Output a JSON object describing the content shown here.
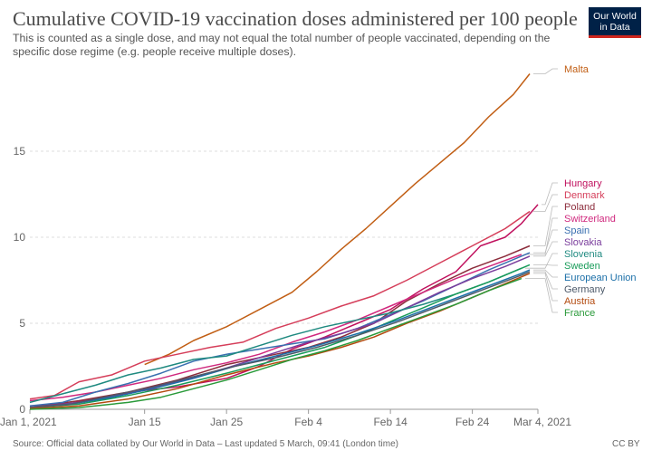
{
  "header": {
    "title": "Cumulative COVID-19 vaccination doses administered per 100 people",
    "subtitle": "This is counted as a single dose, and may not equal the total number of people vaccinated, depending on the specific dose regime (e.g. people receive multiple doses).",
    "logo_line1": "Our World",
    "logo_line2": "in Data"
  },
  "footer": {
    "source": "Source: Official data collated by Our World in Data – Last updated 5 March, 09:41 (London time)",
    "license": "CC BY"
  },
  "chart_data": {
    "type": "line",
    "title": "Cumulative COVID-19 vaccination doses administered per 100 people",
    "ylim": [
      0,
      20
    ],
    "yticks": [
      0,
      5,
      10,
      15
    ],
    "x_ticks": [
      {
        "day": 0,
        "label": "Jan 1, 2021"
      },
      {
        "day": 14,
        "label": "Jan 15"
      },
      {
        "day": 24,
        "label": "Jan 25"
      },
      {
        "day": 34,
        "label": "Feb 4"
      },
      {
        "day": 44,
        "label": "Feb 14"
      },
      {
        "day": 54,
        "label": "Feb 24"
      },
      {
        "day": 62,
        "label": "Mar 4, 2021"
      }
    ],
    "x_range_days": [
      0,
      62
    ],
    "grid": "horizontal dashed",
    "legend": "right, end-of-line labels",
    "series": [
      {
        "name": "Malta",
        "color": "#c15e14",
        "points": [
          [
            14,
            2.6
          ],
          [
            17,
            3.2
          ],
          [
            20,
            4.0
          ],
          [
            24,
            4.8
          ],
          [
            28,
            5.8
          ],
          [
            32,
            6.8
          ],
          [
            35,
            8.0
          ],
          [
            38,
            9.3
          ],
          [
            41,
            10.5
          ],
          [
            44,
            11.8
          ],
          [
            47,
            13.1
          ],
          [
            50,
            14.3
          ],
          [
            53,
            15.5
          ],
          [
            56,
            17.0
          ],
          [
            59,
            18.3
          ],
          [
            61,
            19.5
          ]
        ]
      },
      {
        "name": "Hungary",
        "color": "#c0115e",
        "points": [
          [
            0,
            0.2
          ],
          [
            5,
            0.35
          ],
          [
            10,
            0.8
          ],
          [
            14,
            1.1
          ],
          [
            18,
            1.3
          ],
          [
            24,
            1.8
          ],
          [
            28,
            2.5
          ],
          [
            32,
            3.5
          ],
          [
            36,
            4.2
          ],
          [
            40,
            5.0
          ],
          [
            44,
            5.8
          ],
          [
            48,
            7.0
          ],
          [
            52,
            8.0
          ],
          [
            55,
            9.5
          ],
          [
            58,
            10.0
          ],
          [
            60,
            10.8
          ],
          [
            62,
            11.9
          ]
        ]
      },
      {
        "name": "Denmark",
        "color": "#d53e5a",
        "points": [
          [
            0,
            0.6
          ],
          [
            3,
            0.8
          ],
          [
            6,
            1.6
          ],
          [
            10,
            2.0
          ],
          [
            14,
            2.8
          ],
          [
            18,
            3.2
          ],
          [
            22,
            3.6
          ],
          [
            26,
            3.9
          ],
          [
            30,
            4.7
          ],
          [
            34,
            5.3
          ],
          [
            38,
            6.0
          ],
          [
            42,
            6.6
          ],
          [
            46,
            7.5
          ],
          [
            50,
            8.5
          ],
          [
            54,
            9.5
          ],
          [
            58,
            10.5
          ],
          [
            61,
            11.5
          ]
        ]
      },
      {
        "name": "Poland",
        "color": "#8c2d3c",
        "points": [
          [
            0,
            0.1
          ],
          [
            6,
            0.5
          ],
          [
            12,
            1.0
          ],
          [
            18,
            1.7
          ],
          [
            24,
            2.6
          ],
          [
            30,
            3.2
          ],
          [
            34,
            3.6
          ],
          [
            38,
            4.2
          ],
          [
            42,
            5.0
          ],
          [
            46,
            6.3
          ],
          [
            50,
            7.3
          ],
          [
            54,
            8.2
          ],
          [
            58,
            8.9
          ],
          [
            61,
            9.5
          ]
        ]
      },
      {
        "name": "Switzerland",
        "color": "#d0297e",
        "points": [
          [
            0,
            0.5
          ],
          [
            4,
            0.7
          ],
          [
            8,
            1.0
          ],
          [
            12,
            1.4
          ],
          [
            16,
            1.8
          ],
          [
            20,
            2.3
          ],
          [
            24,
            2.7
          ],
          [
            28,
            3.2
          ],
          [
            32,
            3.9
          ],
          [
            36,
            4.5
          ],
          [
            40,
            5.2
          ],
          [
            44,
            6.0
          ],
          [
            48,
            6.8
          ],
          [
            52,
            7.6
          ],
          [
            56,
            8.3
          ],
          [
            60,
            9.0
          ]
        ]
      },
      {
        "name": "Spain",
        "color": "#3a70b0",
        "points": [
          [
            0,
            0.2
          ],
          [
            4,
            0.4
          ],
          [
            8,
            1.0
          ],
          [
            12,
            1.5
          ],
          [
            16,
            2.1
          ],
          [
            20,
            2.8
          ],
          [
            24,
            3.2
          ],
          [
            28,
            3.5
          ],
          [
            32,
            3.8
          ],
          [
            36,
            4.1
          ],
          [
            40,
            4.7
          ],
          [
            44,
            5.5
          ],
          [
            48,
            6.3
          ],
          [
            52,
            7.2
          ],
          [
            56,
            8.1
          ],
          [
            61,
            9.1
          ]
        ]
      },
      {
        "name": "Slovakia",
        "color": "#7a3d9c",
        "points": [
          [
            0,
            0.1
          ],
          [
            6,
            0.4
          ],
          [
            12,
            0.9
          ],
          [
            18,
            1.6
          ],
          [
            24,
            2.4
          ],
          [
            30,
            3.3
          ],
          [
            34,
            3.9
          ],
          [
            38,
            4.4
          ],
          [
            42,
            5.0
          ],
          [
            46,
            5.9
          ],
          [
            50,
            6.8
          ],
          [
            54,
            7.6
          ],
          [
            58,
            8.3
          ],
          [
            61,
            8.9
          ]
        ]
      },
      {
        "name": "Slovenia",
        "color": "#1f8a80",
        "points": [
          [
            0,
            0.4
          ],
          [
            4,
            0.9
          ],
          [
            8,
            1.4
          ],
          [
            12,
            2.0
          ],
          [
            16,
            2.4
          ],
          [
            20,
            2.9
          ],
          [
            24,
            3.1
          ],
          [
            28,
            3.7
          ],
          [
            32,
            4.3
          ],
          [
            36,
            4.8
          ],
          [
            40,
            5.2
          ],
          [
            44,
            5.6
          ],
          [
            48,
            6.1
          ],
          [
            52,
            6.7
          ],
          [
            56,
            7.4
          ],
          [
            60,
            8.2
          ]
        ]
      },
      {
        "name": "Sweden",
        "color": "#199c5a",
        "points": [
          [
            0,
            0.1
          ],
          [
            6,
            0.3
          ],
          [
            12,
            0.8
          ],
          [
            18,
            1.4
          ],
          [
            24,
            2.1
          ],
          [
            28,
            2.6
          ],
          [
            32,
            3.1
          ],
          [
            36,
            3.6
          ],
          [
            40,
            4.3
          ],
          [
            44,
            5.1
          ],
          [
            48,
            5.9
          ],
          [
            52,
            6.7
          ],
          [
            56,
            7.4
          ],
          [
            61,
            8.4
          ]
        ]
      },
      {
        "name": "European Union",
        "color": "#1b6fa8",
        "points": [
          [
            0,
            0.1
          ],
          [
            5,
            0.3
          ],
          [
            10,
            0.7
          ],
          [
            15,
            1.2
          ],
          [
            20,
            1.8
          ],
          [
            25,
            2.5
          ],
          [
            30,
            3.1
          ],
          [
            35,
            3.7
          ],
          [
            40,
            4.4
          ],
          [
            45,
            5.2
          ],
          [
            50,
            6.1
          ],
          [
            55,
            7.0
          ],
          [
            60,
            7.9
          ],
          [
            61,
            8.1
          ]
        ]
      },
      {
        "name": "Germany",
        "color": "#4d5a6a",
        "points": [
          [
            0,
            0.1
          ],
          [
            5,
            0.3
          ],
          [
            10,
            0.8
          ],
          [
            15,
            1.3
          ],
          [
            20,
            1.9
          ],
          [
            25,
            2.5
          ],
          [
            30,
            3.0
          ],
          [
            35,
            3.6
          ],
          [
            40,
            4.3
          ],
          [
            45,
            5.1
          ],
          [
            50,
            6.0
          ],
          [
            55,
            6.9
          ],
          [
            60,
            7.8
          ],
          [
            61,
            8.0
          ]
        ]
      },
      {
        "name": "Austria",
        "color": "#b34a0f",
        "points": [
          [
            0,
            0.05
          ],
          [
            6,
            0.2
          ],
          [
            12,
            0.6
          ],
          [
            18,
            1.2
          ],
          [
            24,
            2.0
          ],
          [
            30,
            2.7
          ],
          [
            34,
            3.1
          ],
          [
            38,
            3.6
          ],
          [
            42,
            4.2
          ],
          [
            46,
            5.0
          ],
          [
            50,
            5.7
          ],
          [
            54,
            6.5
          ],
          [
            58,
            7.3
          ],
          [
            61,
            7.9
          ]
        ]
      },
      {
        "name": "France",
        "color": "#2a9a3a",
        "points": [
          [
            0,
            0.0
          ],
          [
            6,
            0.1
          ],
          [
            12,
            0.4
          ],
          [
            16,
            0.7
          ],
          [
            20,
            1.2
          ],
          [
            24,
            1.7
          ],
          [
            28,
            2.3
          ],
          [
            32,
            2.9
          ],
          [
            36,
            3.4
          ],
          [
            40,
            4.0
          ],
          [
            44,
            4.7
          ],
          [
            48,
            5.4
          ],
          [
            52,
            6.1
          ],
          [
            56,
            6.9
          ],
          [
            60,
            7.6
          ]
        ]
      }
    ]
  }
}
